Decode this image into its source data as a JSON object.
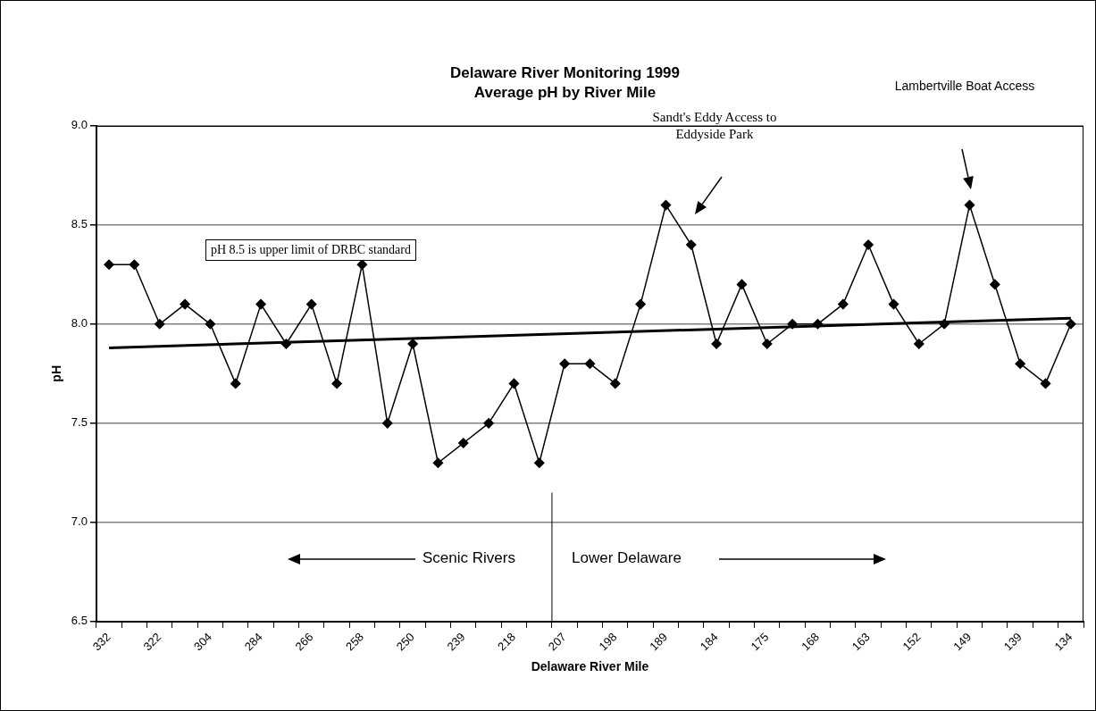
{
  "chart_data": {
    "type": "line",
    "title": "Delaware River Monitoring 1999",
    "subtitle": "Average pH by River Mile",
    "xlabel": "Delaware River Mile",
    "ylabel": "pH",
    "categories": [
      "332",
      null,
      "322",
      null,
      "304",
      null,
      "284",
      null,
      "266",
      null,
      "258",
      null,
      "250",
      null,
      "239",
      null,
      "218",
      null,
      "207",
      null,
      "198",
      null,
      "189",
      null,
      "184",
      null,
      "175",
      null,
      "168",
      null,
      "163",
      null,
      "152",
      null,
      "149",
      null,
      "139",
      null,
      "134"
    ],
    "series": [
      {
        "color": "#000000",
        "values": [
          8.3,
          8.3,
          8.0,
          8.1,
          8.0,
          7.7,
          8.1,
          7.9,
          8.1,
          7.7,
          8.3,
          7.5,
          7.9,
          7.3,
          7.4,
          7.5,
          7.7,
          7.3,
          7.8,
          7.8,
          7.7,
          8.1,
          8.6,
          8.4,
          7.9,
          8.2,
          7.9,
          8.0,
          8.0,
          8.1,
          8.4,
          8.1,
          7.9,
          8.0,
          8.6,
          8.2,
          7.8,
          7.7,
          8.0
        ]
      },
      {
        "type": "line",
        "color": "#000000",
        "marker": "none",
        "x": [
          "332",
          "134"
        ],
        "values": [
          7.88,
          8.03
        ]
      }
    ],
    "ylim": [
      6.5,
      9.0
    ],
    "yticks": [
      {
        "value": 6.5,
        "label": "6.5"
      },
      {
        "value": 7,
        "label": "7.0"
      },
      {
        "value": 7.5,
        "label": "7.5"
      },
      {
        "value": 8,
        "label": "8.0"
      },
      {
        "value": 8.5,
        "label": "8.5"
      },
      {
        "value": 9,
        "label": "9.0"
      }
    ],
    "grid": "y",
    "legend": false,
    "marker": "diamond",
    "ref_lines": [
      {
        "axis": "x",
        "value": "207",
        "color": "#000000"
      }
    ],
    "annotations": [
      "pH 8.5 is upper limit of DRBC standard",
      "Scenic Rivers",
      "Lower Delaware",
      "Sandt's Eddy Access to Eddyside Park",
      "Lambertville Boat Access"
    ]
  }
}
